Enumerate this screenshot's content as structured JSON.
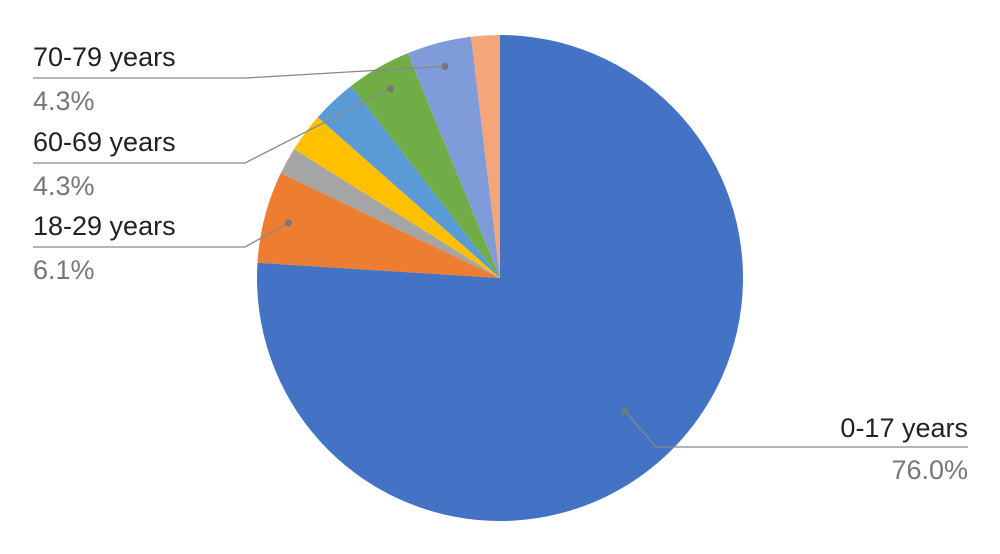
{
  "chart_data": {
    "type": "pie",
    "categories": [
      "0-17 years",
      "18-29 years",
      null,
      null,
      null,
      "60-69 years",
      "70-79 years",
      null
    ],
    "values": [
      76.0,
      6.1,
      1.8,
      2.6,
      3.0,
      4.3,
      4.3,
      1.9
    ],
    "value_labels": [
      "76.0%",
      "6.1%",
      null,
      null,
      null,
      "4.3%",
      "4.3%",
      null
    ],
    "colors": [
      "#4472c4",
      "#ed7d31",
      "#a5a5a5",
      "#ffc000",
      "#5b9bd5",
      "#70ad47",
      "#7f9bd9",
      "#f4a67a"
    ]
  }
}
